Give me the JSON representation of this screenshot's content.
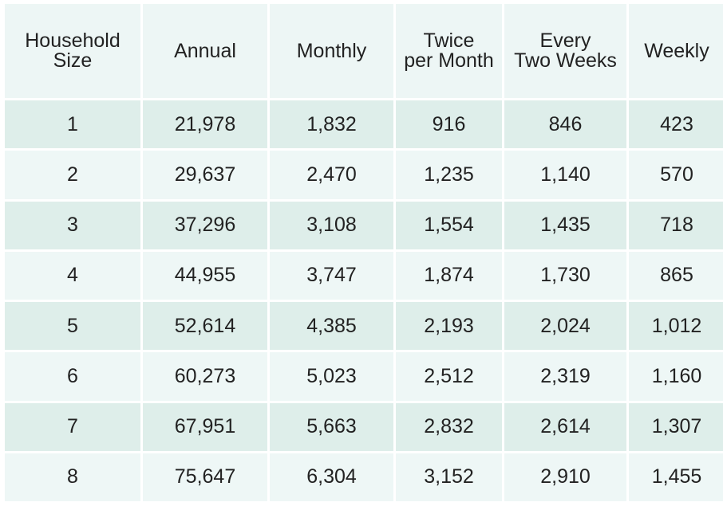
{
  "table": {
    "headers": [
      "Household\nSize",
      "Annual",
      "Monthly",
      "Twice\nper Month",
      "Every\nTwo Weeks",
      "Weekly"
    ],
    "rows": [
      [
        "1",
        "21,978",
        "1,832",
        "916",
        "846",
        "423"
      ],
      [
        "2",
        "29,637",
        "2,470",
        "1,235",
        "1,140",
        "570"
      ],
      [
        "3",
        "37,296",
        "3,108",
        "1,554",
        "1,435",
        "718"
      ],
      [
        "4",
        "44,955",
        "3,747",
        "1,874",
        "1,730",
        "865"
      ],
      [
        "5",
        "52,614",
        "4,385",
        "2,193",
        "2,024",
        "1,012"
      ],
      [
        "6",
        "60,273",
        "5,023",
        "2,512",
        "2,319",
        "1,160"
      ],
      [
        "7",
        "67,951",
        "5,663",
        "2,832",
        "2,614",
        "1,307"
      ],
      [
        "8",
        "75,647",
        "6,304",
        "3,152",
        "2,910",
        "1,455"
      ]
    ]
  },
  "colors": {
    "header_bg": "#edf6f5",
    "row_shaded_bg": "#deeeea",
    "row_plain_bg": "#eef7f6",
    "text": "#222222"
  }
}
